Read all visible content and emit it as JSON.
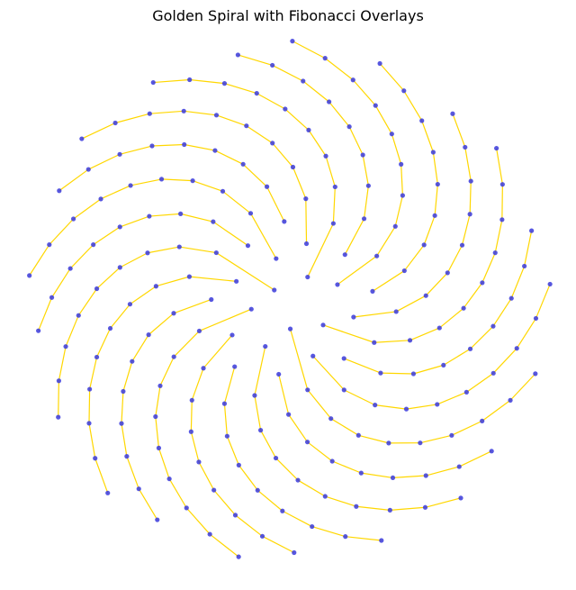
{
  "chart_data": {
    "type": "scatter",
    "title": "Golden Spiral with Fibonacci Overlays",
    "xlabel": "",
    "ylabel": "",
    "axes_visible": false,
    "grid": false,
    "point_count": 200,
    "golden_angle_degrees": 137.50776,
    "radius_rule": "r proportional to sqrt(n)",
    "connection_rule": "point n is linked to point n + 21 (Fibonacci step)",
    "fibonacci_step": 21,
    "xlim": [
      -14.5,
      14.5
    ],
    "ylim": [
      -14.5,
      14.5
    ],
    "point_color": "#3a3adc",
    "line_color": "#ffd700"
  }
}
